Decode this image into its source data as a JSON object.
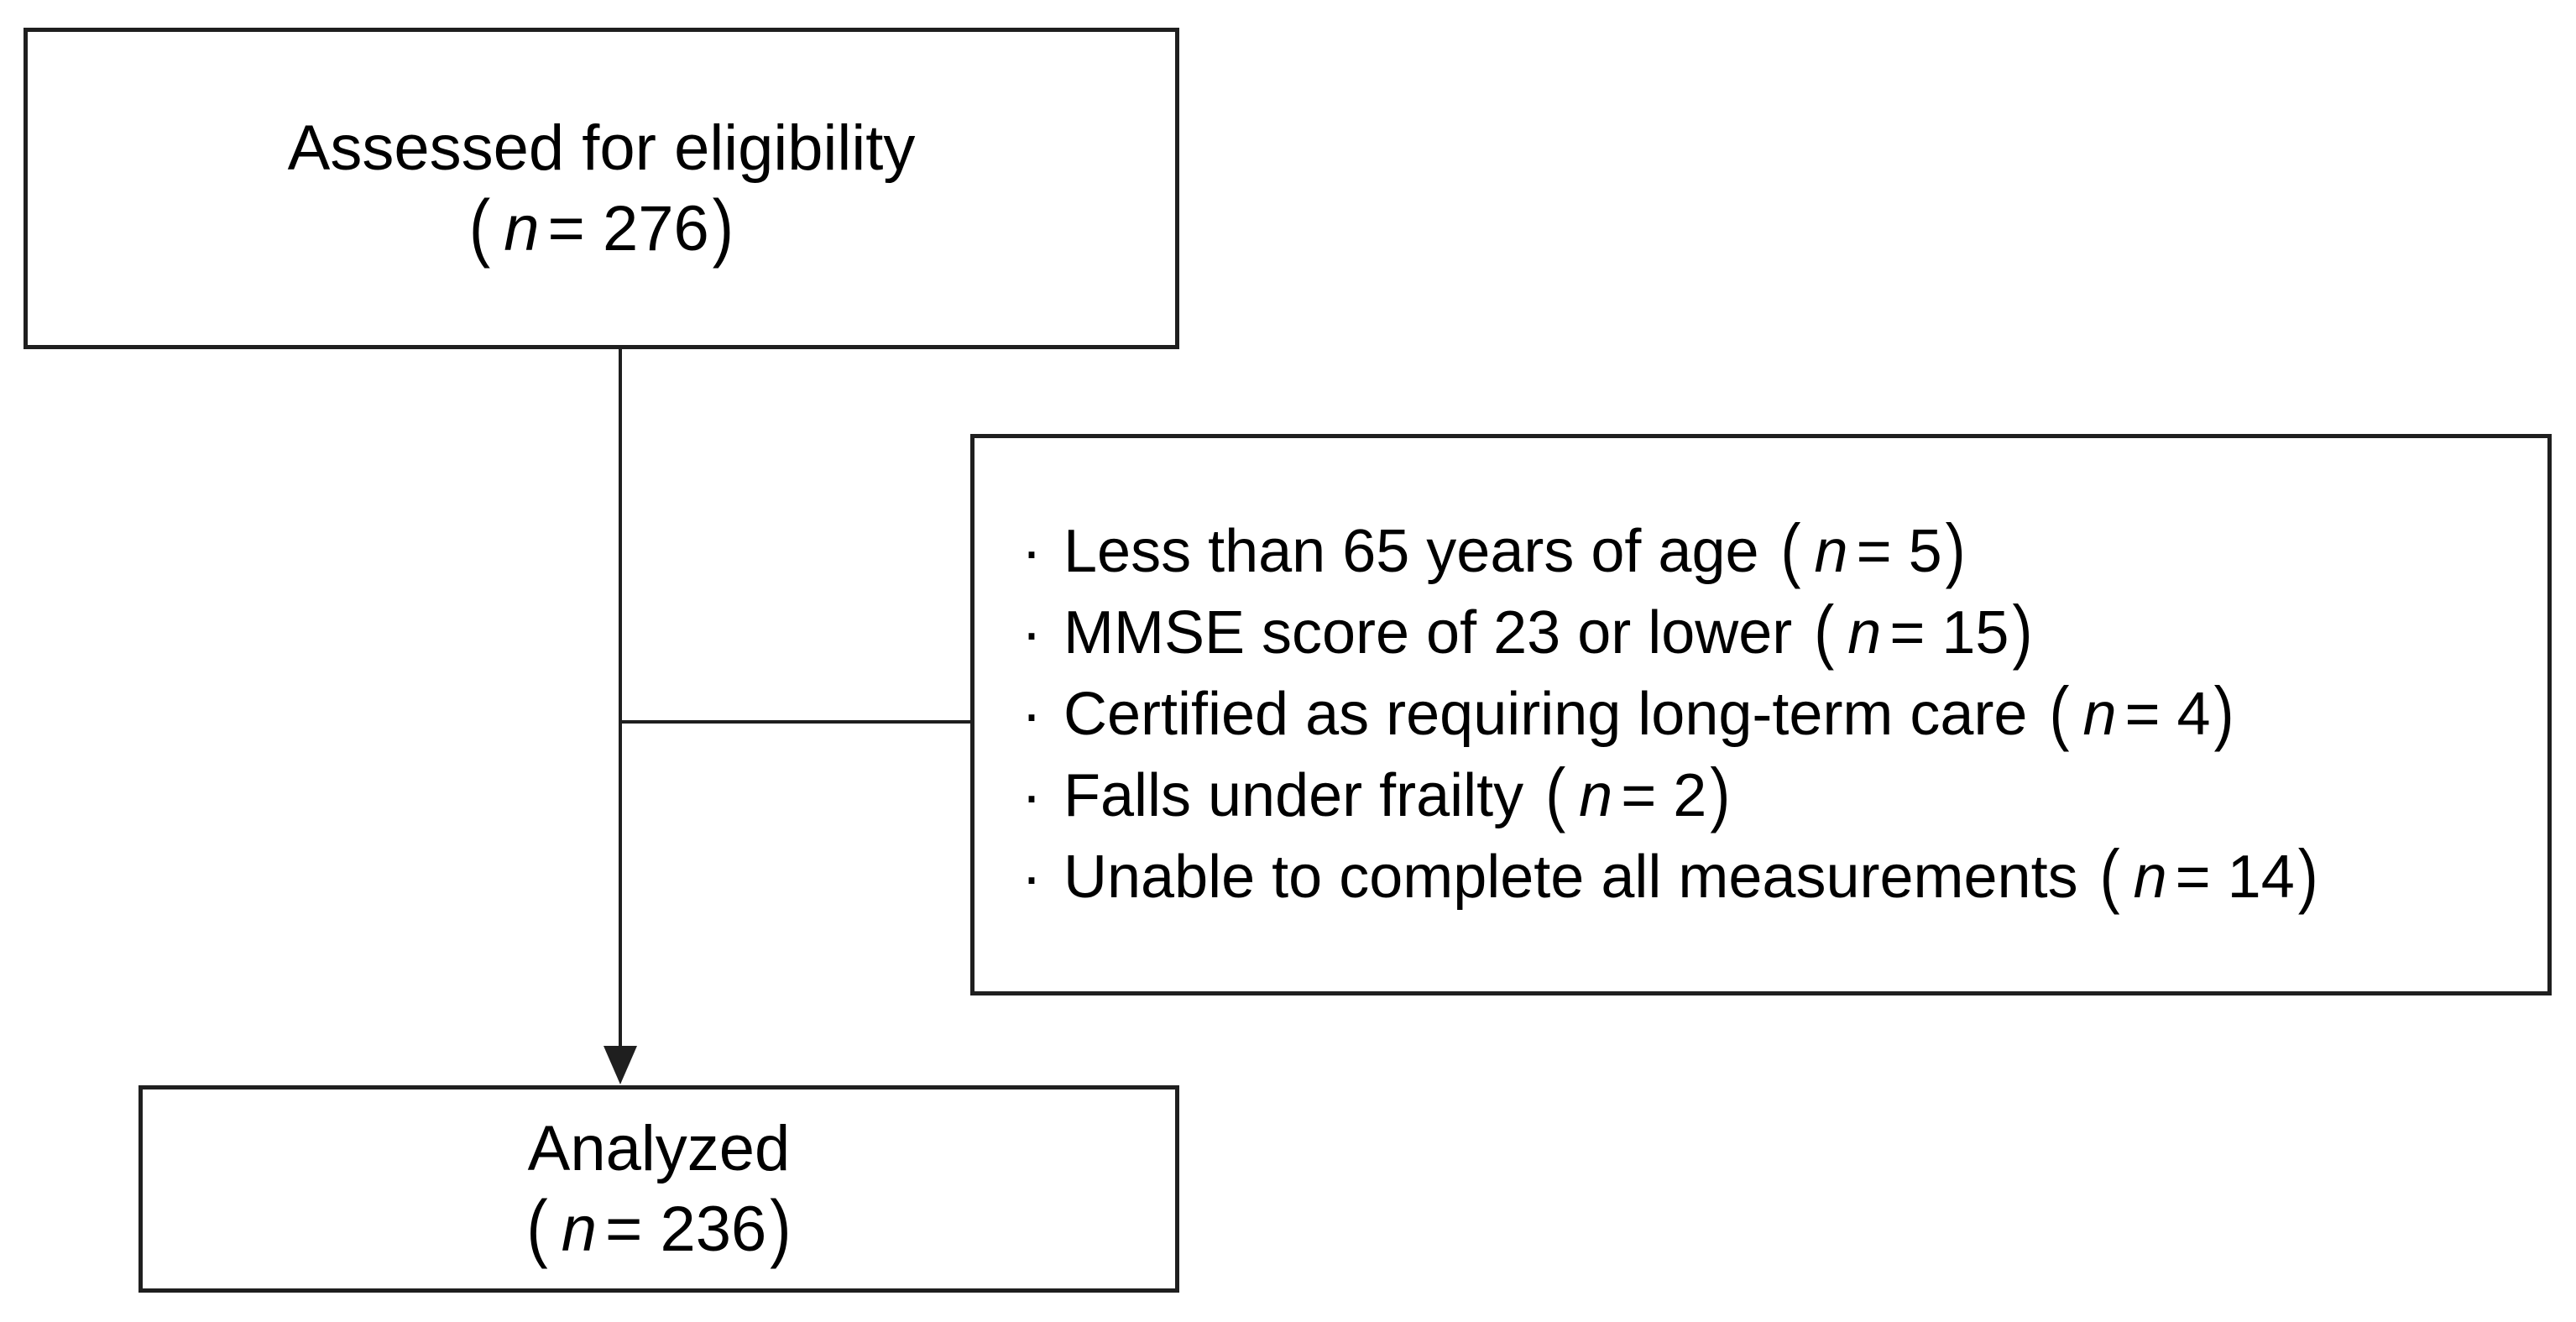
{
  "figure": {
    "background": "#ffffff",
    "line_color": "#1f1f1f",
    "text_color": "#000000"
  },
  "assessed_box": {
    "label": "Assessed for eligibility",
    "n_open": "(",
    "n_var": "n",
    "n_val": "= 276",
    "n_close": ")"
  },
  "excluded_box": {
    "bullet": "·",
    "items": [
      {
        "text": "Less than 65 years of age",
        "n_open": "(",
        "n_var": "n",
        "n_val": "= 5",
        "n_close": ")"
      },
      {
        "text": "MMSE score of 23 or lower",
        "n_open": "(",
        "n_var": "n",
        "n_val": "= 15",
        "n_close": ")"
      },
      {
        "text": "Certified as requiring long-term care",
        "n_open": "(",
        "n_var": "n",
        "n_val": "= 4",
        "n_close": ")"
      },
      {
        "text": "Falls under frailty",
        "n_open": "(",
        "n_var": "n",
        "n_val": "= 2",
        "n_close": ")"
      },
      {
        "text": "Unable to complete all measurements",
        "n_open": "(",
        "n_var": "n",
        "n_val": "= 14",
        "n_close": ")"
      }
    ]
  },
  "analyzed_box": {
    "label": "Analyzed",
    "n_open": "(",
    "n_var": "n",
    "n_val": "= 236",
    "n_close": ")"
  }
}
